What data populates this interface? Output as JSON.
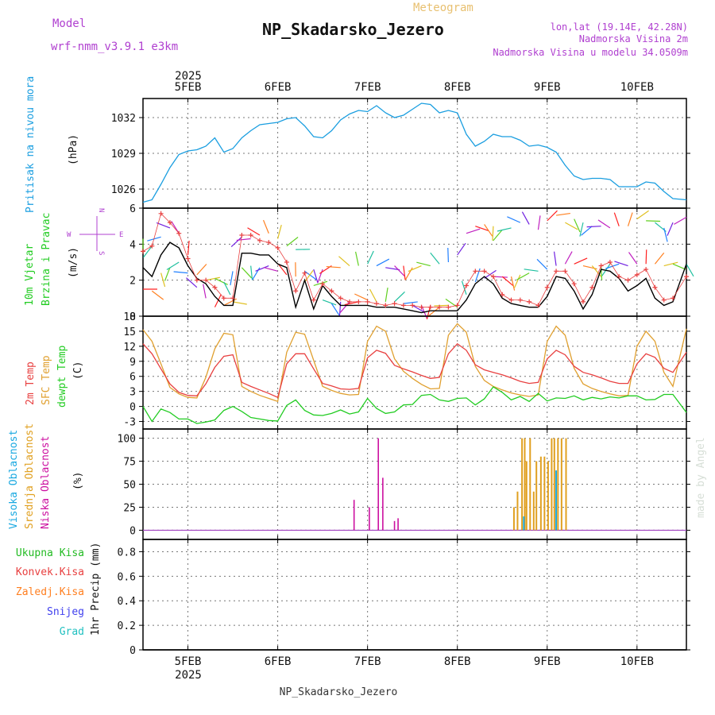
{
  "header": {
    "model_label": "Model",
    "model_name": "wrf-nmm_v3.9.1 e3km",
    "subtitle": "Meteogram",
    "station": "NP_Skadarsko_Jezero",
    "lonlat": "lon,lat (19.14E, 42.28N)",
    "elevation": "Nadmorska Visina 2m",
    "model_elevation": "Nadmorska Visina u modelu 34.0509m",
    "footer_station": "NP_Skadarsko_Jezero",
    "watermark": "made by Angel"
  },
  "colors": {
    "pressure": "#1a9ee0",
    "t2m": "#e84040",
    "sfc": "#e0a030",
    "dewpt": "#22cc22",
    "wind_speed": "#000000",
    "gust": "#e84040",
    "model_label": "#b040d0",
    "cloud_high": "#18a8e0",
    "cloud_mid": "#e0a020",
    "cloud_low": "#cc10a0",
    "precip_total": "#22bb22",
    "precip_conv": "#e84040",
    "precip_frozen": "#ff7f20",
    "precip_snow": "#4040ee",
    "precip_hail": "#20c0c0"
  },
  "time_axis": {
    "year": "2025",
    "days": [
      "5FEB",
      "6FEB",
      "7FEB",
      "8FEB",
      "9FEB",
      "10FEB"
    ],
    "day_positions": [
      0.5,
      1.5,
      2.5,
      3.5,
      4.5,
      5.5
    ],
    "range": [
      0,
      6.05
    ]
  },
  "chart_data": [
    {
      "type": "line",
      "panel": "pressure",
      "ylabel": "Pritisak na nivou mora",
      "unit": "(hPa)",
      "ylim": [
        1024.4,
        1033.6
      ],
      "yticks": [
        1026,
        1029,
        1032
      ],
      "x": [
        0.0,
        0.1,
        0.2,
        0.3,
        0.4,
        0.5,
        0.6,
        0.7,
        0.8,
        0.9,
        1.0,
        1.1,
        1.2,
        1.3,
        1.4,
        1.5,
        1.6,
        1.7,
        1.8,
        1.9,
        2.0,
        2.1,
        2.2,
        2.3,
        2.4,
        2.5,
        2.6,
        2.7,
        2.8,
        2.9,
        3.0,
        3.1,
        3.2,
        3.3,
        3.4,
        3.5,
        3.6,
        3.7,
        3.8,
        3.9,
        4.0,
        4.1,
        4.2,
        4.3,
        4.4,
        4.5,
        4.6,
        4.7,
        4.8,
        4.9,
        5.0,
        5.1,
        5.2,
        5.3,
        5.4,
        5.5,
        5.6,
        5.7,
        5.8,
        5.9,
        6.05
      ],
      "series": [
        {
          "name": "pressure",
          "values": [
            1024.9,
            1025.1,
            1026.4,
            1027.8,
            1028.9,
            1029.2,
            1029.3,
            1029.6,
            1030.3,
            1029.1,
            1029.4,
            1030.3,
            1030.9,
            1031.4,
            1031.5,
            1031.6,
            1031.9,
            1032.0,
            1031.3,
            1030.4,
            1030.3,
            1030.9,
            1031.8,
            1032.3,
            1032.6,
            1032.5,
            1033.0,
            1032.4,
            1032.0,
            1032.2,
            1032.7,
            1033.2,
            1033.1,
            1032.4,
            1032.6,
            1032.4,
            1030.6,
            1029.6,
            1030.0,
            1030.6,
            1030.4,
            1030.4,
            1030.1,
            1029.6,
            1029.7,
            1029.5,
            1029.1,
            1028.0,
            1027.1,
            1026.8,
            1026.9,
            1026.9,
            1026.8,
            1026.2,
            1026.2,
            1026.2,
            1026.6,
            1026.5,
            1025.8,
            1025.2,
            1025.1
          ]
        }
      ]
    },
    {
      "type": "line",
      "panel": "wind",
      "ylabel_1": "10m Vjetar",
      "ylabel_2": "Brzina i Pravac",
      "unit": "(m/s)",
      "compass": {
        "n": "N",
        "s": "S",
        "w": "W",
        "e": "E"
      },
      "ylim": [
        0,
        6
      ],
      "yticks": [
        0,
        2,
        4,
        6
      ],
      "x": [
        0.0,
        0.1,
        0.2,
        0.3,
        0.4,
        0.5,
        0.6,
        0.7,
        0.8,
        0.9,
        1.0,
        1.1,
        1.2,
        1.3,
        1.4,
        1.5,
        1.6,
        1.7,
        1.8,
        1.9,
        2.0,
        2.1,
        2.2,
        2.3,
        2.4,
        2.5,
        2.6,
        2.7,
        2.8,
        2.9,
        3.0,
        3.1,
        3.2,
        3.3,
        3.4,
        3.5,
        3.6,
        3.7,
        3.8,
        3.9,
        4.0,
        4.1,
        4.2,
        4.3,
        4.4,
        4.5,
        4.6,
        4.7,
        4.8,
        4.9,
        5.0,
        5.1,
        5.2,
        5.3,
        5.4,
        5.5,
        5.6,
        5.7,
        5.8,
        5.9,
        6.05
      ],
      "series": [
        {
          "name": "speed",
          "values": [
            2.7,
            2.2,
            3.4,
            4.1,
            3.8,
            2.8,
            2.1,
            1.8,
            1.1,
            0.6,
            0.6,
            3.5,
            3.5,
            3.4,
            3.4,
            2.9,
            2.7,
            0.5,
            2.0,
            0.4,
            1.7,
            1.1,
            0.6,
            0.6,
            0.6,
            0.6,
            0.5,
            0.5,
            0.5,
            0.4,
            0.3,
            0.2,
            0.3,
            0.3,
            0.3,
            0.3,
            0.9,
            1.8,
            2.2,
            1.8,
            1.0,
            0.7,
            0.6,
            0.5,
            0.5,
            1.1,
            2.2,
            2.1,
            1.4,
            0.4,
            1.2,
            2.6,
            2.5,
            2.1,
            1.4,
            1.7,
            2.1,
            1.0,
            0.6,
            0.8,
            2.9
          ]
        },
        {
          "name": "gust",
          "values": [
            3.6,
            3.9,
            5.7,
            5.2,
            4.6,
            3.2,
            2.0,
            2.0,
            1.6,
            1.0,
            1.0,
            4.5,
            4.5,
            4.2,
            4.1,
            3.8,
            3.0,
            1.4,
            2.4,
            0.9,
            1.8,
            1.4,
            1.0,
            0.8,
            0.8,
            0.8,
            0.7,
            0.6,
            0.7,
            0.6,
            0.6,
            0.5,
            0.5,
            0.5,
            0.5,
            0.6,
            1.7,
            2.5,
            2.5,
            2.2,
            1.2,
            0.9,
            0.9,
            0.8,
            0.6,
            1.6,
            2.5,
            2.5,
            1.8,
            0.8,
            1.6,
            2.8,
            3.0,
            2.2,
            2.0,
            2.3,
            2.6,
            1.6,
            0.9,
            1.0,
            2.2
          ]
        }
      ],
      "barbs_upper_level": [
        4.3,
        3.9,
        4.4,
        4.9,
        4.6,
        3.4,
        2.3,
        2.0,
        2.1,
        1.9,
        2.5,
        4.4,
        4.3,
        4.5,
        4.6,
        4.3,
        3.9,
        3.7,
        2.5,
        2.6,
        2.6,
        2.8,
        2.7,
        2.8,
        2.8,
        2.9,
        2.8,
        2.7,
        2.8,
        2.8,
        2.7,
        2.8,
        2.8,
        2.9,
        3.0,
        3.4,
        4.6,
        5.0,
        5.1,
        5.0,
        4.8,
        4.9,
        5.2,
        5.1,
        4.8,
        5.3,
        5.6,
        5.2,
        5.4,
        5.2,
        5.0,
        5.0,
        4.9,
        5.0,
        5.0,
        5.4,
        5.3,
        5.2,
        4.9,
        5.2,
        5.5
      ],
      "barbs_lower_level": [
        1.5,
        1.4,
        2.4,
        2.7,
        3.0,
        2.4,
        1.6,
        1.0,
        0.5,
        0.6,
        0.8,
        2.7,
        2.8,
        2.7,
        2.8,
        2.5,
        2.3,
        2.2,
        1.9,
        1.7,
        0.9,
        0.7,
        0.8,
        0.8,
        0.8,
        0.9,
        0.8,
        0.8,
        0.8,
        0.7,
        0.6,
        0.6,
        0.6,
        0.5,
        0.6,
        0.5,
        1.2,
        1.9,
        2.1,
        2.2,
        2.2,
        2.2,
        2.3,
        2.4,
        2.5,
        2.6,
        2.8,
        2.9,
        2.9,
        2.8,
        2.8,
        2.8,
        2.9,
        2.9,
        2.8,
        2.9,
        2.9,
        2.9,
        2.8,
        2.9,
        2.9
      ]
    },
    {
      "type": "line",
      "panel": "temperature",
      "label_t2m": "2m Temp",
      "label_sfc": "SFC Temp",
      "label_dew": "dewpt Temp",
      "unit": "(C)",
      "ylim": [
        -4.5,
        18
      ],
      "yticks": [
        -3,
        0,
        3,
        6,
        9,
        12,
        15,
        18
      ],
      "x": [
        0.0,
        0.1,
        0.2,
        0.3,
        0.4,
        0.5,
        0.6,
        0.7,
        0.8,
        0.9,
        1.0,
        1.1,
        1.2,
        1.3,
        1.4,
        1.5,
        1.6,
        1.7,
        1.8,
        1.9,
        2.0,
        2.1,
        2.2,
        2.3,
        2.4,
        2.5,
        2.6,
        2.7,
        2.8,
        2.9,
        3.0,
        3.1,
        3.2,
        3.3,
        3.4,
        3.5,
        3.6,
        3.7,
        3.8,
        3.9,
        4.0,
        4.1,
        4.2,
        4.3,
        4.4,
        4.5,
        4.6,
        4.7,
        4.8,
        4.9,
        5.0,
        5.1,
        5.2,
        5.3,
        5.4,
        5.5,
        5.6,
        5.7,
        5.8,
        5.9,
        6.05
      ],
      "series": [
        {
          "name": "t2m",
          "values": [
            12.5,
            10.5,
            7.5,
            4.5,
            2.8,
            2.2,
            2.1,
            4.5,
            7.8,
            10.0,
            10.3,
            4.8,
            4.0,
            3.3,
            2.6,
            1.8,
            8.5,
            10.5,
            10.5,
            7.5,
            4.6,
            4.1,
            3.5,
            3.4,
            3.6,
            9.7,
            11.2,
            10.6,
            8.2,
            7.5,
            6.9,
            6.2,
            5.6,
            5.8,
            10.5,
            12.5,
            11.2,
            8.3,
            7.3,
            6.8,
            6.3,
            5.7,
            5.0,
            4.6,
            4.8,
            9.5,
            11.2,
            10.3,
            8.0,
            6.8,
            6.3,
            5.7,
            5.0,
            4.6,
            4.6,
            8.5,
            10.5,
            9.8,
            7.6,
            6.8,
            10.8
          ]
        },
        {
          "name": "sfc",
          "values": [
            15.3,
            13.0,
            8.5,
            3.8,
            2.5,
            1.8,
            1.7,
            5.8,
            11.5,
            14.6,
            14.3,
            4.0,
            3.0,
            2.2,
            1.6,
            1.0,
            10.8,
            14.8,
            14.4,
            9.2,
            4.0,
            3.2,
            2.6,
            2.3,
            2.4,
            13.0,
            16.0,
            15.0,
            9.5,
            7.0,
            5.6,
            4.4,
            3.5,
            3.6,
            14.2,
            16.5,
            14.8,
            8.0,
            5.2,
            4.0,
            3.3,
            2.7,
            2.3,
            2.0,
            2.3,
            13.0,
            16.0,
            14.2,
            7.6,
            4.5,
            3.6,
            3.0,
            2.5,
            2.1,
            2.2,
            12.0,
            15.0,
            13.0,
            6.8,
            4.0,
            15.5
          ]
        },
        {
          "name": "dewpt",
          "values": [
            0.0,
            -3.0,
            -0.5,
            -1.2,
            -2.5,
            -2.5,
            -3.4,
            -3.1,
            -2.7,
            -0.8,
            0.0,
            -1.0,
            -2.2,
            -2.5,
            -2.8,
            -2.9,
            0.2,
            1.3,
            -0.8,
            -1.7,
            -1.8,
            -1.4,
            -0.7,
            -1.5,
            -1.1,
            1.6,
            -0.4,
            -1.4,
            -1.1,
            0.3,
            0.4,
            2.2,
            2.4,
            1.3,
            1.0,
            1.6,
            1.7,
            0.3,
            1.5,
            3.9,
            2.8,
            1.3,
            2.0,
            1.0,
            2.6,
            1.1,
            1.7,
            1.6,
            2.1,
            1.3,
            1.8,
            1.5,
            1.9,
            1.7,
            2.1,
            2.1,
            1.3,
            1.4,
            2.4,
            2.4,
            -1.2
          ]
        }
      ]
    },
    {
      "type": "bar",
      "panel": "clouds",
      "label_high": "Visoka Oblacnost",
      "label_mid": "Srednja Oblacnost",
      "label_low": "Niska Oblacnost",
      "unit": "(%)",
      "ylim": [
        -10,
        110
      ],
      "yticks": [
        0,
        25,
        50,
        75,
        100
      ],
      "low_bars": [
        [
          2.35,
          33
        ],
        [
          2.52,
          25
        ],
        [
          2.62,
          100
        ],
        [
          2.67,
          57
        ],
        [
          2.8,
          10
        ],
        [
          2.84,
          13
        ]
      ],
      "mid_bars": [
        [
          4.13,
          25
        ],
        [
          4.17,
          42
        ],
        [
          4.22,
          100
        ],
        [
          4.25,
          100
        ],
        [
          4.27,
          75
        ],
        [
          4.31,
          100
        ],
        [
          4.35,
          42
        ],
        [
          4.38,
          75
        ],
        [
          4.43,
          80
        ],
        [
          4.47,
          80
        ],
        [
          4.51,
          75
        ],
        [
          4.55,
          100
        ],
        [
          4.58,
          100
        ],
        [
          4.62,
          100
        ],
        [
          4.66,
          100
        ],
        [
          4.71,
          100
        ]
      ],
      "high_bars": [
        [
          4.24,
          15
        ],
        [
          4.6,
          65
        ]
      ]
    },
    {
      "type": "bar",
      "panel": "precip",
      "label_total": "Ukupna Kisa",
      "label_conv": "Konvek.Kisa",
      "label_frozen": "Zaledj.Kisa",
      "label_snow": "Snijeg",
      "label_hail": "Grad",
      "ylabel": "1hr Precip (mm)",
      "ylim": [
        0,
        0.9
      ],
      "yticks": [
        0,
        0.2,
        0.4,
        0.6,
        0.8
      ],
      "values": []
    }
  ]
}
